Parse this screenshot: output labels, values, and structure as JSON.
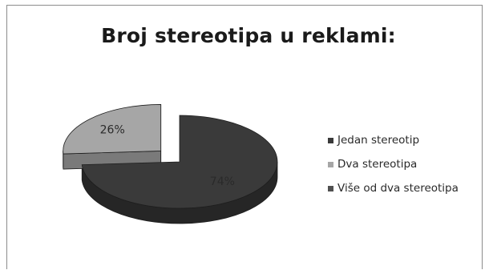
{
  "chart_data": {
    "type": "pie",
    "title": "Broj stereotipa u reklami:",
    "categories": [
      "Jedan stereotip",
      "Dva stereotipa",
      "Više od dva stereotipa"
    ],
    "values": [
      74,
      26,
      0
    ],
    "data_labels": [
      "74%",
      "26%",
      ""
    ],
    "colors": [
      "#3a3a3a",
      "#a6a6a6",
      "#505050"
    ],
    "side_colors": [
      "#262626",
      "#7a7a7a",
      "#3c3c3c"
    ],
    "exploded": [
      false,
      true,
      false
    ],
    "three_d": true,
    "legend_position": "right"
  }
}
